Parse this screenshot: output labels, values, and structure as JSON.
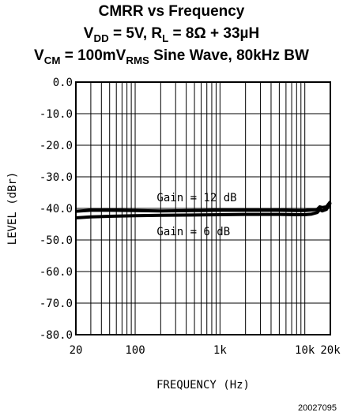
{
  "title": {
    "line1": "CMRR vs Frequency",
    "line2": {
      "a": "V",
      "a_sub": "DD",
      "b": " = 5V, R",
      "b_sub": "L",
      "c": " = 8Ω + 33µH"
    },
    "line3": {
      "a": "V",
      "a_sub": "CM",
      "b": " = 100mV",
      "b_sub": "RMS",
      "c": " Sine Wave, 80kHz BW"
    }
  },
  "figure_code": "20027095",
  "chart_data": {
    "type": "line",
    "xlabel": "FREQUENCY (Hz)",
    "ylabel": "LEVEL (dBr)",
    "xscale": "log",
    "xlim": [
      20,
      20000
    ],
    "ylim": [
      -80,
      0
    ],
    "grid": true,
    "x_ticks": [
      {
        "value": 20,
        "label": "20"
      },
      {
        "value": 100,
        "label": "100"
      },
      {
        "value": 1000,
        "label": "1k"
      },
      {
        "value": 10000,
        "label": "10k"
      },
      {
        "value": 20000,
        "label": "20k"
      }
    ],
    "y_ticks": [
      {
        "value": 0,
        "label": "0.0"
      },
      {
        "value": -10,
        "label": "-10.0"
      },
      {
        "value": -20,
        "label": "-20.0"
      },
      {
        "value": -30,
        "label": "-30.0"
      },
      {
        "value": -40,
        "label": "-40.0"
      },
      {
        "value": -50,
        "label": "-50.0"
      },
      {
        "value": -60,
        "label": "-60.0"
      },
      {
        "value": -70,
        "label": "-70.0"
      },
      {
        "value": -80,
        "label": "-80.0"
      }
    ],
    "series": [
      {
        "name": "Gain = 12 dB",
        "x": [
          20,
          30,
          50,
          100,
          200,
          500,
          1000,
          2000,
          5000,
          8000,
          10000,
          12000,
          14000,
          15000,
          16000,
          18000,
          20000
        ],
        "y": [
          -40.9,
          -40.6,
          -40.6,
          -40.7,
          -40.8,
          -40.7,
          -40.6,
          -40.6,
          -40.6,
          -40.7,
          -40.7,
          -40.5,
          -40.3,
          -39.5,
          -39.7,
          -39.5,
          -37.9
        ]
      },
      {
        "name": "Gain = 6 dB",
        "x": [
          20,
          30,
          50,
          100,
          200,
          500,
          1000,
          2000,
          5000,
          8000,
          10000,
          12000,
          14000,
          15000,
          16000,
          18000,
          20000
        ],
        "y": [
          -43.0,
          -42.7,
          -42.5,
          -42.3,
          -42.2,
          -42.1,
          -42.0,
          -41.9,
          -41.9,
          -42.0,
          -42.0,
          -41.8,
          -41.3,
          -40.4,
          -40.8,
          -40.3,
          -38.2
        ]
      }
    ],
    "annotations": [
      {
        "text": "Gain = 12 dB",
        "x": 180,
        "y": -36.5
      },
      {
        "text": "Gain = 6 dB",
        "x": 180,
        "y": -47.2
      }
    ]
  }
}
